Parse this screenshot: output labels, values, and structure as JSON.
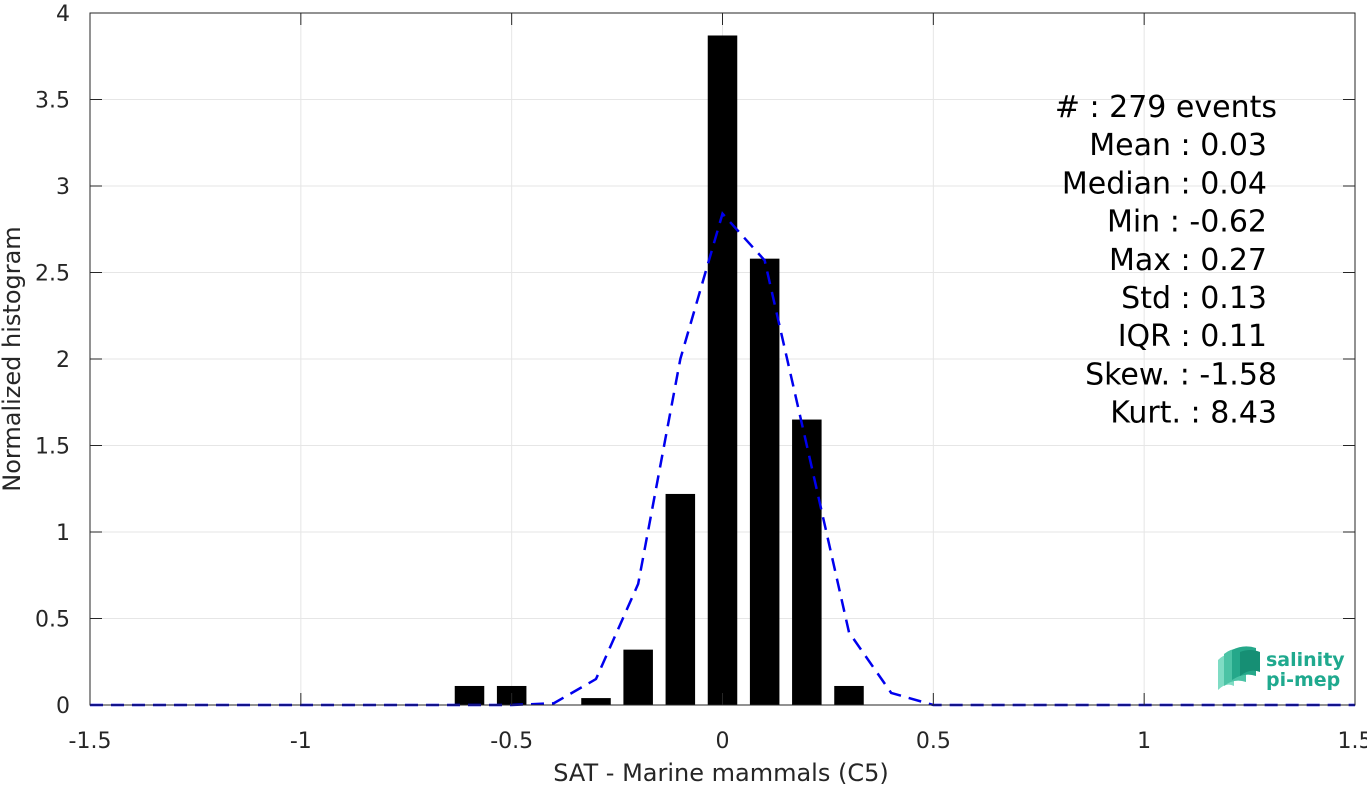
{
  "chart_data": {
    "type": "bar",
    "xlabel": "SAT - Marine mammals (C5)",
    "ylabel": "Normalized histogram",
    "xlim": [
      -1.5,
      1.5
    ],
    "ylim": [
      0,
      4
    ],
    "xticks": [
      -1.5,
      -1,
      -0.5,
      0,
      0.5,
      1,
      1.5
    ],
    "xtick_labels": [
      "-1.5",
      "-1",
      "-0.5",
      "0",
      "0.5",
      "1",
      "1.5"
    ],
    "yticks": [
      0,
      0.5,
      1,
      1.5,
      2,
      2.5,
      3,
      3.5,
      4
    ],
    "ytick_labels": [
      "0",
      "0.5",
      "1",
      "1.5",
      "2",
      "2.5",
      "3",
      "3.5",
      "4"
    ],
    "grid": true,
    "bar_width": 0.07,
    "bars": {
      "x": [
        -0.6,
        -0.5,
        -0.3,
        -0.2,
        -0.1,
        0.0,
        0.1,
        0.2,
        0.3
      ],
      "values": [
        0.11,
        0.11,
        0.04,
        0.32,
        1.22,
        3.87,
        2.58,
        1.65,
        0.11
      ],
      "color": "#000000"
    },
    "fit_line": {
      "style": "dashed",
      "color": "#0000ee",
      "x": [
        -1.5,
        -1.4,
        -1.3,
        -1.2,
        -1.1,
        -1.0,
        -0.9,
        -0.8,
        -0.7,
        -0.6,
        -0.5,
        -0.4,
        -0.3,
        -0.2,
        -0.1,
        0.0,
        0.1,
        0.2,
        0.3,
        0.4,
        0.5,
        0.6,
        0.7,
        0.8,
        0.9,
        1.0,
        1.1,
        1.2,
        1.3,
        1.4,
        1.5
      ],
      "y": [
        0,
        0,
        0,
        0,
        0,
        0,
        0,
        0,
        0,
        0,
        0,
        0.01,
        0.15,
        0.7,
        2.0,
        2.84,
        2.57,
        1.5,
        0.42,
        0.07,
        0,
        0,
        0,
        0,
        0,
        0,
        0,
        0,
        0,
        0,
        0
      ]
    },
    "stats": [
      "#  : 279 events",
      "Mean : 0.03",
      "Median : 0.04",
      "Min : -0.62",
      "Max : 0.27",
      "Std : 0.13",
      "IQR : 0.11",
      "Skew. : -1.58",
      "Kurt. : 8.43"
    ]
  },
  "logo": {
    "line1": "salinity",
    "line2": "pi-mep"
  }
}
